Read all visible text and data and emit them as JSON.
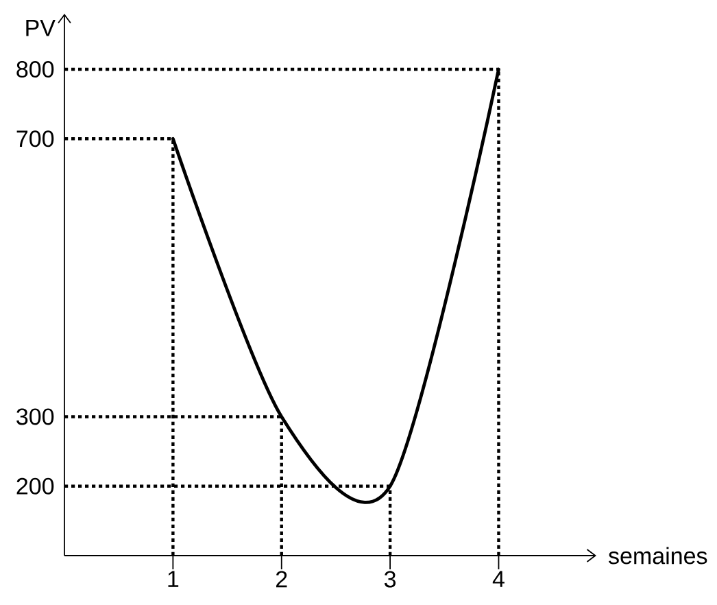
{
  "chart_data": {
    "type": "line",
    "xlabel": "semaines",
    "ylabel": "PV",
    "x": [
      1,
      2,
      3,
      4
    ],
    "values": [
      700,
      300,
      200,
      800
    ],
    "color": "#000000",
    "xlim": [
      0,
      4.9
    ],
    "ylim": [
      100,
      880
    ],
    "xticks": [
      1,
      2,
      3,
      4
    ],
    "yticks": [
      200,
      300,
      700,
      800
    ],
    "ref_lines": [
      {
        "axis": "x",
        "value": 1,
        "line_style": "dotted",
        "color": "#000000"
      },
      {
        "axis": "x",
        "value": 2,
        "line_style": "dotted",
        "color": "#000000"
      },
      {
        "axis": "x",
        "value": 3,
        "line_style": "dotted",
        "color": "#000000"
      },
      {
        "axis": "x",
        "value": 4,
        "line_style": "dotted",
        "color": "#000000"
      },
      {
        "axis": "y",
        "value": 200,
        "line_style": "dotted",
        "color": "#000000"
      },
      {
        "axis": "y",
        "value": 300,
        "line_style": "dotted",
        "color": "#000000"
      },
      {
        "axis": "y",
        "value": 700,
        "line_style": "dotted",
        "color": "#000000"
      },
      {
        "axis": "y",
        "value": 800,
        "line_style": "dotted",
        "color": "#000000"
      }
    ]
  }
}
